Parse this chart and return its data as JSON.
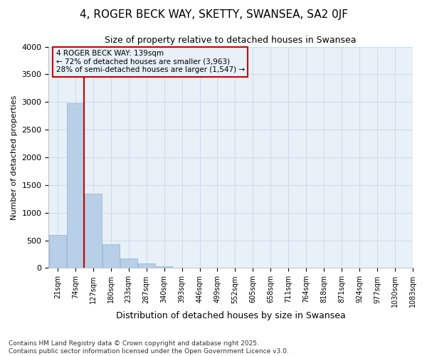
{
  "title1": "4, ROGER BECK WAY, SKETTY, SWANSEA, SA2 0JF",
  "title2": "Size of property relative to detached houses in Swansea",
  "xlabel": "Distribution of detached houses by size in Swansea",
  "ylabel": "Number of detached properties",
  "footer1": "Contains HM Land Registry data © Crown copyright and database right 2025.",
  "footer2": "Contains public sector information licensed under the Open Government Licence v3.0.",
  "annotation_title": "4 ROGER BECK WAY: 139sqm",
  "annotation_line1": "← 72% of detached houses are smaller (3,963)",
  "annotation_line2": "28% of semi-detached houses are larger (1,547) →",
  "bar_values": [
    600,
    2980,
    1350,
    430,
    170,
    80,
    30,
    5,
    0,
    0,
    0,
    0,
    0,
    0,
    0,
    0,
    0,
    0,
    0,
    0
  ],
  "bar_color": "#b8cfe8",
  "bar_edge_color": "#9ab8d8",
  "bin_labels": [
    "21sqm",
    "74sqm",
    "127sqm",
    "180sqm",
    "233sqm",
    "287sqm",
    "340sqm",
    "393sqm",
    "446sqm",
    "499sqm",
    "552sqm",
    "605sqm",
    "658sqm",
    "711sqm",
    "764sqm",
    "818sqm",
    "871sqm",
    "924sqm",
    "977sqm",
    "1030sqm",
    "1083sqm"
  ],
  "red_line_bin_index": 2,
  "ylim": [
    0,
    4000
  ],
  "yticks": [
    0,
    500,
    1000,
    1500,
    2000,
    2500,
    3000,
    3500,
    4000
  ],
  "grid_color": "#c8d8e8",
  "bg_color": "#ffffff",
  "plot_bg_color": "#e8f0f8",
  "box_edge_color": "#cc0000",
  "red_line_color": "#cc0000"
}
